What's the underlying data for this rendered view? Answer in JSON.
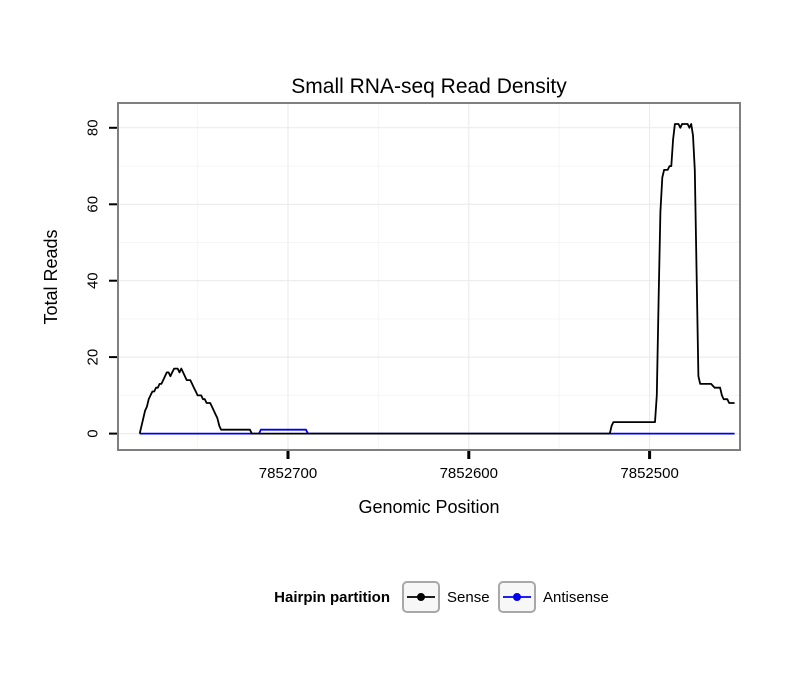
{
  "title": "Small RNA-seq Read Density",
  "legend": {
    "title": "Hairpin partition",
    "items": [
      {
        "label": "Sense",
        "color": "#000000"
      },
      {
        "label": "Antisense",
        "color": "#0000ee"
      }
    ]
  },
  "colors": {
    "background": "#ffffff",
    "panel_border": "#7f7f7f",
    "grid_major": "#e9e9e9",
    "grid_minor": "#f5f5f5",
    "tick": "#000000",
    "sense_line": "#000000",
    "antisense_line": "#0000ee",
    "legend_key_fill": "#f7f7f7",
    "legend_key_border": "#a8a8a8"
  },
  "chart_data": {
    "type": "line",
    "title": "Small RNA-seq Read Density",
    "xlabel": "Genomic Position",
    "ylabel": "Total Reads",
    "x_axis_reversed": true,
    "x_view": [
      7852794,
      7852450
    ],
    "y_view": [
      -4.3,
      86.5
    ],
    "xlim": [
      7852794,
      7852450
    ],
    "ylim": [
      0,
      81
    ],
    "x_ticks": [
      7852700,
      7852600,
      7852500
    ],
    "x_tick_labels": [
      "7852700",
      "7852600",
      "7852500"
    ],
    "x_minor_ticks": [
      7852750,
      7852650,
      7852550
    ],
    "y_ticks": [
      0,
      20,
      40,
      60,
      80
    ],
    "y_tick_labels": [
      "0",
      "20",
      "40",
      "60",
      "80"
    ],
    "y_minor_ticks": [
      10,
      30,
      50,
      70
    ],
    "grid": true,
    "legend_position": "bottom",
    "series": [
      {
        "name": "Sense",
        "color": "#000000",
        "points": [
          [
            7852782,
            0
          ],
          [
            7852781,
            2
          ],
          [
            7852780,
            4
          ],
          [
            7852779,
            6
          ],
          [
            7852778,
            7
          ],
          [
            7852777,
            9
          ],
          [
            7852776,
            10
          ],
          [
            7852775,
            11
          ],
          [
            7852774,
            11
          ],
          [
            7852773,
            12
          ],
          [
            7852772,
            12
          ],
          [
            7852771,
            13
          ],
          [
            7852770,
            13
          ],
          [
            7852769,
            14
          ],
          [
            7852768,
            15
          ],
          [
            7852767,
            16
          ],
          [
            7852766,
            16
          ],
          [
            7852765,
            15
          ],
          [
            7852764,
            16
          ],
          [
            7852763,
            17
          ],
          [
            7852761,
            17
          ],
          [
            7852760,
            16
          ],
          [
            7852759,
            17
          ],
          [
            7852758,
            16
          ],
          [
            7852757,
            15
          ],
          [
            7852756,
            14
          ],
          [
            7852754,
            14
          ],
          [
            7852753,
            13
          ],
          [
            7852752,
            12
          ],
          [
            7852751,
            11
          ],
          [
            7852750,
            10
          ],
          [
            7852748,
            10
          ],
          [
            7852747,
            9
          ],
          [
            7852746,
            9
          ],
          [
            7852745,
            8
          ],
          [
            7852743,
            8
          ],
          [
            7852742,
            7
          ],
          [
            7852741,
            6
          ],
          [
            7852740,
            5
          ],
          [
            7852739,
            4
          ],
          [
            7852738,
            2
          ],
          [
            7852737,
            1
          ],
          [
            7852730,
            1
          ],
          [
            7852721,
            1
          ],
          [
            7852720,
            0
          ],
          [
            7852700,
            0
          ],
          [
            7852650,
            0
          ],
          [
            7852600,
            0
          ],
          [
            7852550,
            0
          ],
          [
            7852522,
            0
          ],
          [
            7852521,
            2
          ],
          [
            7852520,
            3
          ],
          [
            7852510,
            3
          ],
          [
            7852500,
            3
          ],
          [
            7852497,
            3
          ],
          [
            7852496,
            10
          ],
          [
            7852495,
            35
          ],
          [
            7852494,
            58
          ],
          [
            7852493,
            67
          ],
          [
            7852492,
            69
          ],
          [
            7852490,
            69
          ],
          [
            7852489,
            70
          ],
          [
            7852488,
            70
          ],
          [
            7852487,
            77
          ],
          [
            7852486,
            81
          ],
          [
            7852484,
            81
          ],
          [
            7852483,
            80
          ],
          [
            7852482,
            81
          ],
          [
            7852479,
            81
          ],
          [
            7852478,
            80
          ],
          [
            7852477,
            81
          ],
          [
            7852476,
            78
          ],
          [
            7852475,
            69
          ],
          [
            7852474,
            42
          ],
          [
            7852473,
            15
          ],
          [
            7852472,
            13
          ],
          [
            7852468,
            13
          ],
          [
            7852466,
            13
          ],
          [
            7852464,
            12
          ],
          [
            7852461,
            12
          ],
          [
            7852460,
            10
          ],
          [
            7852459,
            9
          ],
          [
            7852457,
            9
          ],
          [
            7852456,
            8
          ],
          [
            7852453,
            8
          ]
        ]
      },
      {
        "name": "Antisense",
        "color": "#0000ee",
        "points": [
          [
            7852782,
            0
          ],
          [
            7852716,
            0
          ],
          [
            7852715,
            1
          ],
          [
            7852713,
            1
          ],
          [
            7852700,
            1
          ],
          [
            7852690,
            1
          ],
          [
            7852689,
            0
          ],
          [
            7852600,
            0
          ],
          [
            7852500,
            0
          ],
          [
            7852453,
            0
          ]
        ]
      }
    ]
  }
}
